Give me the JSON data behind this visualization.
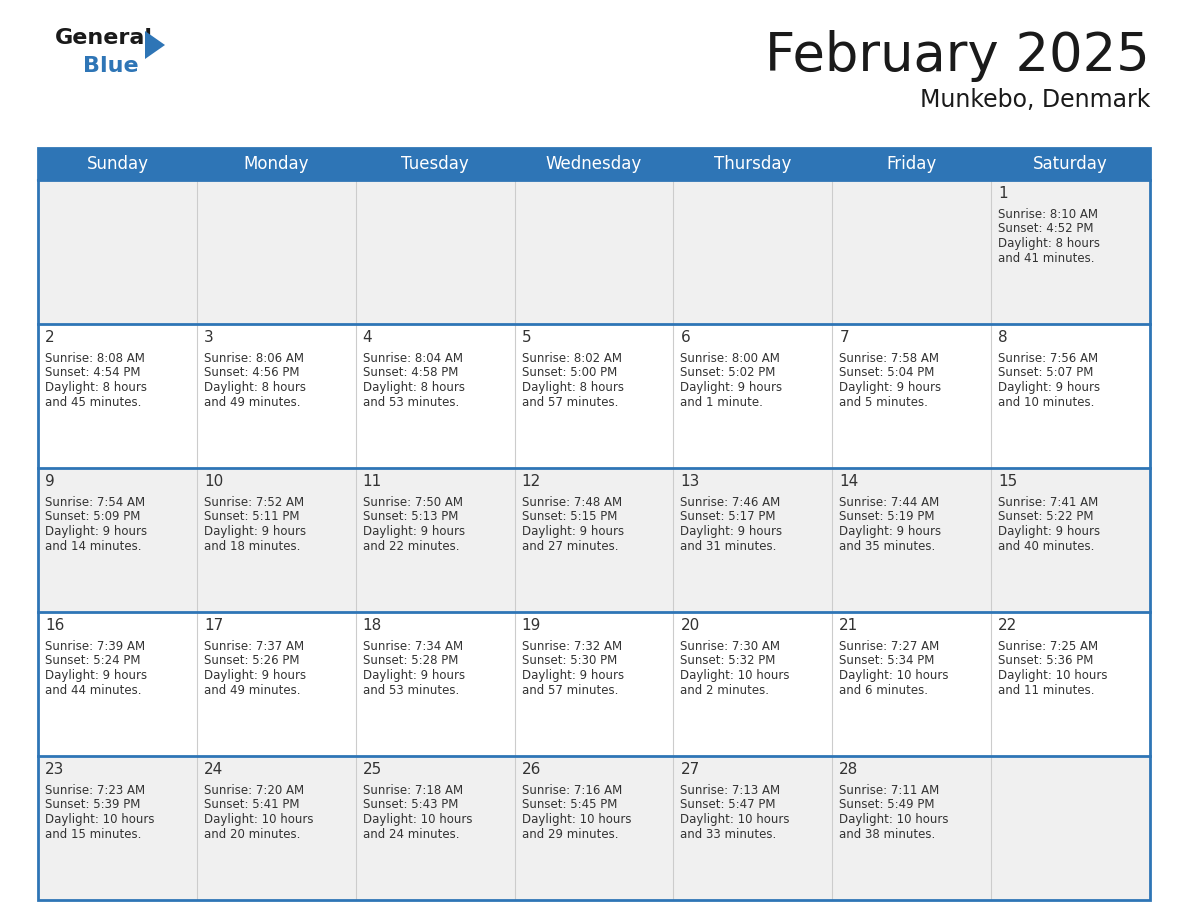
{
  "title": "February 2025",
  "subtitle": "Munkebo, Denmark",
  "header_color": "#2e75b6",
  "header_text_color": "#ffffff",
  "days_of_week": [
    "Sunday",
    "Monday",
    "Tuesday",
    "Wednesday",
    "Thursday",
    "Friday",
    "Saturday"
  ],
  "bg_color": "#ffffff",
  "separator_color": "#2e75b6",
  "day_num_color": "#333333",
  "text_color": "#333333",
  "cell_bg": [
    "#f0f0f0",
    "#ffffff"
  ],
  "calendar_data": [
    [
      null,
      null,
      null,
      null,
      null,
      null,
      {
        "day": "1",
        "sunrise": "8:10 AM",
        "sunset": "4:52 PM",
        "dl1": "Daylight: 8 hours",
        "dl2": "and 41 minutes."
      }
    ],
    [
      {
        "day": "2",
        "sunrise": "8:08 AM",
        "sunset": "4:54 PM",
        "dl1": "Daylight: 8 hours",
        "dl2": "and 45 minutes."
      },
      {
        "day": "3",
        "sunrise": "8:06 AM",
        "sunset": "4:56 PM",
        "dl1": "Daylight: 8 hours",
        "dl2": "and 49 minutes."
      },
      {
        "day": "4",
        "sunrise": "8:04 AM",
        "sunset": "4:58 PM",
        "dl1": "Daylight: 8 hours",
        "dl2": "and 53 minutes."
      },
      {
        "day": "5",
        "sunrise": "8:02 AM",
        "sunset": "5:00 PM",
        "dl1": "Daylight: 8 hours",
        "dl2": "and 57 minutes."
      },
      {
        "day": "6",
        "sunrise": "8:00 AM",
        "sunset": "5:02 PM",
        "dl1": "Daylight: 9 hours",
        "dl2": "and 1 minute."
      },
      {
        "day": "7",
        "sunrise": "7:58 AM",
        "sunset": "5:04 PM",
        "dl1": "Daylight: 9 hours",
        "dl2": "and 5 minutes."
      },
      {
        "day": "8",
        "sunrise": "7:56 AM",
        "sunset": "5:07 PM",
        "dl1": "Daylight: 9 hours",
        "dl2": "and 10 minutes."
      }
    ],
    [
      {
        "day": "9",
        "sunrise": "7:54 AM",
        "sunset": "5:09 PM",
        "dl1": "Daylight: 9 hours",
        "dl2": "and 14 minutes."
      },
      {
        "day": "10",
        "sunrise": "7:52 AM",
        "sunset": "5:11 PM",
        "dl1": "Daylight: 9 hours",
        "dl2": "and 18 minutes."
      },
      {
        "day": "11",
        "sunrise": "7:50 AM",
        "sunset": "5:13 PM",
        "dl1": "Daylight: 9 hours",
        "dl2": "and 22 minutes."
      },
      {
        "day": "12",
        "sunrise": "7:48 AM",
        "sunset": "5:15 PM",
        "dl1": "Daylight: 9 hours",
        "dl2": "and 27 minutes."
      },
      {
        "day": "13",
        "sunrise": "7:46 AM",
        "sunset": "5:17 PM",
        "dl1": "Daylight: 9 hours",
        "dl2": "and 31 minutes."
      },
      {
        "day": "14",
        "sunrise": "7:44 AM",
        "sunset": "5:19 PM",
        "dl1": "Daylight: 9 hours",
        "dl2": "and 35 minutes."
      },
      {
        "day": "15",
        "sunrise": "7:41 AM",
        "sunset": "5:22 PM",
        "dl1": "Daylight: 9 hours",
        "dl2": "and 40 minutes."
      }
    ],
    [
      {
        "day": "16",
        "sunrise": "7:39 AM",
        "sunset": "5:24 PM",
        "dl1": "Daylight: 9 hours",
        "dl2": "and 44 minutes."
      },
      {
        "day": "17",
        "sunrise": "7:37 AM",
        "sunset": "5:26 PM",
        "dl1": "Daylight: 9 hours",
        "dl2": "and 49 minutes."
      },
      {
        "day": "18",
        "sunrise": "7:34 AM",
        "sunset": "5:28 PM",
        "dl1": "Daylight: 9 hours",
        "dl2": "and 53 minutes."
      },
      {
        "day": "19",
        "sunrise": "7:32 AM",
        "sunset": "5:30 PM",
        "dl1": "Daylight: 9 hours",
        "dl2": "and 57 minutes."
      },
      {
        "day": "20",
        "sunrise": "7:30 AM",
        "sunset": "5:32 PM",
        "dl1": "Daylight: 10 hours",
        "dl2": "and 2 minutes."
      },
      {
        "day": "21",
        "sunrise": "7:27 AM",
        "sunset": "5:34 PM",
        "dl1": "Daylight: 10 hours",
        "dl2": "and 6 minutes."
      },
      {
        "day": "22",
        "sunrise": "7:25 AM",
        "sunset": "5:36 PM",
        "dl1": "Daylight: 10 hours",
        "dl2": "and 11 minutes."
      }
    ],
    [
      {
        "day": "23",
        "sunrise": "7:23 AM",
        "sunset": "5:39 PM",
        "dl1": "Daylight: 10 hours",
        "dl2": "and 15 minutes."
      },
      {
        "day": "24",
        "sunrise": "7:20 AM",
        "sunset": "5:41 PM",
        "dl1": "Daylight: 10 hours",
        "dl2": "and 20 minutes."
      },
      {
        "day": "25",
        "sunrise": "7:18 AM",
        "sunset": "5:43 PM",
        "dl1": "Daylight: 10 hours",
        "dl2": "and 24 minutes."
      },
      {
        "day": "26",
        "sunrise": "7:16 AM",
        "sunset": "5:45 PM",
        "dl1": "Daylight: 10 hours",
        "dl2": "and 29 minutes."
      },
      {
        "day": "27",
        "sunrise": "7:13 AM",
        "sunset": "5:47 PM",
        "dl1": "Daylight: 10 hours",
        "dl2": "and 33 minutes."
      },
      {
        "day": "28",
        "sunrise": "7:11 AM",
        "sunset": "5:49 PM",
        "dl1": "Daylight: 10 hours",
        "dl2": "and 38 minutes."
      },
      null
    ]
  ]
}
